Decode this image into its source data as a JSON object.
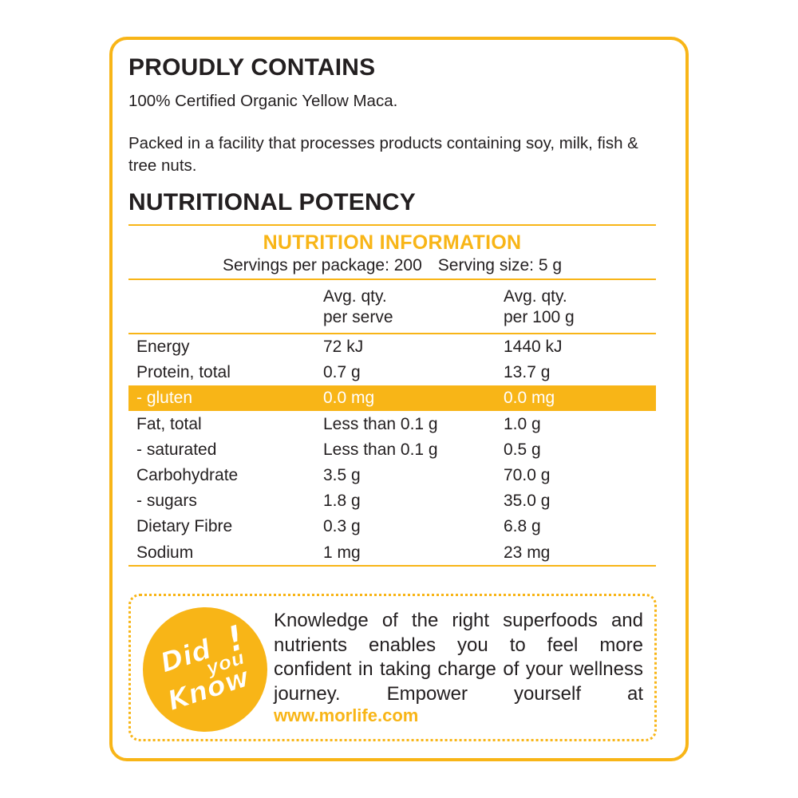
{
  "sections": {
    "contains_title": "PROUDLY CONTAINS",
    "contains_text": "100% Certified Organic Yellow Maca.",
    "facility_text": "Packed in a facility that processes products containing soy, milk, fish & tree nuts.",
    "potency_title": "NUTRITIONAL POTENCY"
  },
  "nutrition": {
    "title": "NUTRITION INFORMATION",
    "servings": "Servings per package: 200",
    "serving_size": "Serving size: 5 g",
    "col1_line1": "Avg. qty.",
    "col1_line2": "per serve",
    "col2_line1": "Avg. qty.",
    "col2_line2": "per 100 g",
    "rows": [
      {
        "name": "Energy",
        "serve": "72 kJ",
        "per100": "1440 kJ"
      },
      {
        "name": "Protein, total",
        "serve": "0.7 g",
        "per100": "13.7 g"
      },
      {
        "name": "- gluten",
        "serve": "0.0 mg",
        "per100": "0.0 mg"
      },
      {
        "name": "Fat, total",
        "serve": "Less than 0.1 g",
        "per100": "1.0 g"
      },
      {
        "name": "- saturated",
        "serve": "Less than 0.1 g",
        "per100": "0.5 g"
      },
      {
        "name": "Carbohydrate",
        "serve": "3.5 g",
        "per100": "70.0 g"
      },
      {
        "name": "- sugars",
        "serve": "1.8 g",
        "per100": "35.0 g"
      },
      {
        "name": "Dietary Fibre",
        "serve": "0.3 g",
        "per100": "6.8 g"
      },
      {
        "name": "Sodium",
        "serve": "1 mg",
        "per100": "23 mg"
      }
    ],
    "highlight_row_index": 2
  },
  "did_you_know": {
    "badge_text": "Did you Know!",
    "body": "Knowledge of the right superfoods and nutrients enables you to feel more confident in taking charge of your wellness journey. Empower yourself at",
    "link": "www.morlife.com"
  },
  "colors": {
    "accent": "#f8b517",
    "text": "#231f20",
    "background": "#ffffff"
  }
}
